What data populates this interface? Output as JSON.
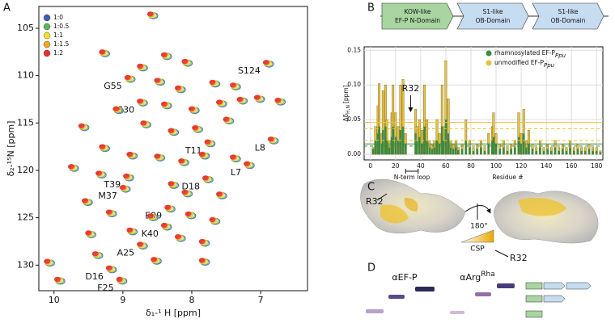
{
  "panels": [
    "A",
    "B",
    "C",
    "D"
  ],
  "chart_data": [
    {
      "type": "scatter",
      "xlabel": "δ₁-¹ H [ppm]",
      "ylabel": "δ₂-¹⁵N [ppm]",
      "xlim": [
        10.22,
        6.32
      ],
      "xticks": [
        10,
        9,
        8,
        7
      ],
      "ylim": [
        102.7,
        132.7
      ],
      "yticks": [
        105,
        110,
        115,
        120,
        125,
        130
      ],
      "legend": [
        {
          "name": "1:0",
          "color": "#3f5fb0"
        },
        {
          "name": "1:0.5",
          "color": "#5cb85c"
        },
        {
          "name": "1:1",
          "color": "#f0e030"
        },
        {
          "name": "1:1.5",
          "color": "#f5a623"
        },
        {
          "name": "1:2",
          "color": "#e8312a"
        }
      ],
      "peaks": {
        "x": [
          8.93,
          6.92,
          8.75,
          7.77,
          6.85,
          7.2,
          7.8,
          8.95,
          9.0,
          8.35,
          8.4,
          8.75,
          9.2,
          9.05,
          8.6,
          9.3,
          8.4,
          8.1,
          8.75,
          8.5,
          8.2,
          7.7,
          7.4,
          9.1,
          8.4,
          8.0,
          7.6,
          7.3,
          7.05,
          6.75,
          9.6,
          8.7,
          8.3,
          7.95,
          7.5,
          9.3,
          8.9,
          8.5,
          8.15,
          7.85,
          7.4,
          9.75,
          9.35,
          8.3,
          8.1,
          7.6,
          9.55,
          9.2,
          8.6,
          8.05,
          7.7,
          9.5,
          8.9,
          8.2,
          7.85,
          9.4,
          8.55,
          7.85,
          10.1,
          9.95
        ],
        "y": [
          110.2,
          108.6,
          112.7,
          117.0,
          116.7,
          119.3,
          120.8,
          120.6,
          121.8,
          123.9,
          125.8,
          127.8,
          130.3,
          131.5,
          103.5,
          107.5,
          107.8,
          108.5,
          109.0,
          110.5,
          111.3,
          110.7,
          111,
          113.5,
          113,
          113.5,
          112.8,
          112.5,
          112.3,
          112.6,
          115.3,
          115,
          115.8,
          115.5,
          114.6,
          117.5,
          118.3,
          118.5,
          119,
          118.3,
          118.6,
          119.6,
          120.3,
          121.4,
          122.3,
          122.5,
          123.2,
          124.4,
          124.8,
          124.6,
          125.2,
          126.6,
          126.3,
          127,
          127.5,
          128.8,
          129.4,
          129.5,
          129.6,
          131.5
        ],
        "labels": [
          "G55",
          "S124",
          "S30",
          "T11",
          "L8",
          "L7",
          "D18",
          "T39",
          "M37",
          "E99",
          "K40",
          "A25",
          "D16",
          "F25",
          null,
          null,
          null,
          null,
          null,
          null,
          null,
          null,
          null,
          null,
          null,
          null,
          null,
          null,
          null,
          null,
          null,
          null,
          null,
          null,
          null,
          null,
          null,
          null,
          null,
          null,
          null,
          null,
          null,
          null,
          null,
          null,
          null,
          null,
          null,
          null,
          null,
          null,
          null,
          null,
          null,
          null,
          null,
          null,
          null,
          null
        ]
      }
    },
    {
      "type": "bar",
      "domains": [
        [
          "KOW-like",
          "EF-P N-Domain"
        ],
        [
          "S1-like",
          "OB-Domain"
        ],
        [
          "S1-like",
          "OB-Domain"
        ]
      ],
      "xlabel": "Residue #",
      "ylabel": {
        "text": "Δδ",
        "sub": "H,N",
        "after": "[ppm]"
      },
      "xlim": [
        -5,
        185
      ],
      "xticks": [
        0,
        20,
        40,
        60,
        80,
        100,
        120,
        140,
        160,
        180
      ],
      "ylim": [
        -0.008,
        0.155
      ],
      "yticks": [
        {
          "value": 0,
          "label": "0.00"
        },
        {
          "value": 0.05,
          "label": "0.05"
        },
        {
          "value": 0.1,
          "label": "0.10"
        },
        {
          "value": 0.15,
          "label": "0.15"
        }
      ],
      "grid": true,
      "x": [
        2,
        4,
        6,
        7,
        9,
        10,
        12,
        13,
        15,
        17,
        18,
        20,
        22,
        24,
        26,
        28,
        36,
        37,
        39,
        41,
        43,
        45,
        47,
        49,
        51,
        53,
        55,
        57,
        58,
        60,
        62,
        64,
        66,
        68,
        70,
        73,
        76,
        79,
        82,
        85,
        88,
        91,
        94,
        97,
        98,
        100,
        103,
        106,
        109,
        112,
        115,
        118,
        120,
        122,
        124,
        126,
        129,
        132,
        135,
        138,
        141,
        144,
        147,
        150,
        153,
        156,
        159,
        162,
        165,
        168,
        171,
        174,
        177,
        180,
        183
      ],
      "series": [
        {
          "name": "unmodified EF-P",
          "name_sub": "Ppu",
          "color": "#e8c23a",
          "values": [
            0.01,
            0.04,
            0.07,
            0.102,
            0.03,
            0.092,
            0.1,
            0.05,
            0.02,
            0.06,
            0.1,
            0.06,
            0.04,
            0.1,
            0.108,
            0.03,
            0.065,
            0.04,
            0.05,
            0.035,
            0.1,
            0.05,
            0.02,
            0.015,
            0.02,
            0.05,
            0.03,
            0.1,
            0.04,
            0.135,
            0.08,
            0.02,
            0.015,
            0.02,
            0.01,
            0.015,
            0.05,
            0.02,
            0.01,
            0.015,
            0.02,
            0.01,
            0.03,
            0.04,
            0.06,
            0.03,
            0.015,
            0.02,
            0.01,
            0.015,
            0.02,
            0.06,
            0.03,
            0.065,
            0.02,
            0.035,
            0.015,
            0.01,
            0.02,
            0.01,
            0.015,
            0.01,
            0.02,
            0.01,
            0.015,
            0.01,
            0.02,
            0.01,
            0.015,
            0.01,
            0.01,
            0.015,
            0.01,
            0.01,
            0.005
          ]
        },
        {
          "name": "rhamnosylated EF-P",
          "name_sub": "Ppu",
          "color": "#3c8c3c",
          "values": [
            0.008,
            0.02,
            0.03,
            0.04,
            0.015,
            0.035,
            0.04,
            0.02,
            0.01,
            0.025,
            0.04,
            0.025,
            0.02,
            0.035,
            0.04,
            0.015,
            0.03,
            0.02,
            0.025,
            0.015,
            0.04,
            0.02,
            0.01,
            0.008,
            0.01,
            0.02,
            0.015,
            0.04,
            0.02,
            0.05,
            0.03,
            0.01,
            0.008,
            0.01,
            0.006,
            0.008,
            0.02,
            0.01,
            0.005,
            0.008,
            0.01,
            0.005,
            0.015,
            0.02,
            0.025,
            0.015,
            0.008,
            0.01,
            0.005,
            0.008,
            0.01,
            0.025,
            0.015,
            0.03,
            0.01,
            0.015,
            0.008,
            0.005,
            0.01,
            0.005,
            0.008,
            0.005,
            0.01,
            0.005,
            0.008,
            0.005,
            0.01,
            0.005,
            0.008,
            0.005,
            0.005,
            0.008,
            0.005,
            0.005,
            0.003
          ]
        }
      ],
      "reference_lines": [
        {
          "value": 0.046,
          "color": "#e8c23a",
          "dashed": false
        },
        {
          "value": 0.037,
          "color": "#e8c23a",
          "dashed": true
        },
        {
          "value": 0.02,
          "color": "#e8c23a",
          "dashed": true
        },
        {
          "value": 0.015,
          "color": "#3c8c3c",
          "dashed": false
        },
        {
          "value": 0.012,
          "color": "#3c8c3c",
          "dashed": true
        }
      ],
      "annotations": [
        {
          "text": "R32",
          "x": 32
        },
        {
          "text": "N-term loop",
          "x": [
            28,
            38
          ]
        }
      ]
    }
  ],
  "panel_c": {
    "labels": [
      "R32",
      "R32"
    ],
    "rotation": "180°",
    "scale_label": "CSP"
  },
  "panel_d": {
    "antibodies": [
      {
        "text": "αEF-P"
      },
      {
        "text": "αArg",
        "sup": "Rha"
      }
    ]
  }
}
